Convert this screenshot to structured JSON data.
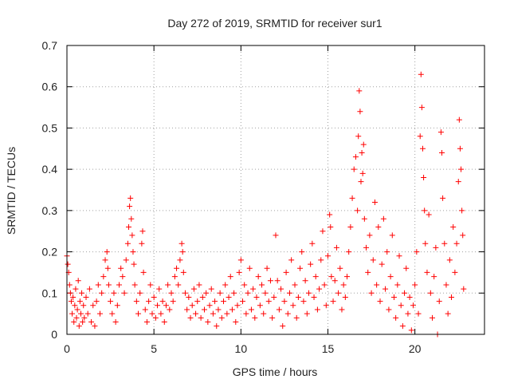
{
  "chart_data": {
    "type": "scatter",
    "title": "Day 272 of 2019, SRMTID for receiver sur1",
    "xlabel": "GPS time / hours",
    "ylabel": "SRMTID / TECUs",
    "xlim": [
      0,
      24
    ],
    "ylim": [
      0,
      0.7
    ],
    "xticks": [
      0,
      5,
      10,
      15,
      20
    ],
    "xtick_labels": [
      "0",
      "5",
      "10",
      "15",
      "20"
    ],
    "yticks": [
      0,
      0.1,
      0.2,
      0.3,
      0.4,
      0.5,
      0.6,
      0.7
    ],
    "ytick_labels": [
      "0",
      "0.1",
      "0.2",
      "0.3",
      "0.4",
      "0.5",
      "0.6",
      "0.7"
    ],
    "grid": true,
    "marker": "+",
    "series": [
      {
        "name": "sur1",
        "color": "#ff0000",
        "points": [
          [
            0.0,
            0.19
          ],
          [
            0.05,
            0.17
          ],
          [
            0.1,
            0.15
          ],
          [
            0.15,
            0.12
          ],
          [
            0.2,
            0.1
          ],
          [
            0.25,
            0.08
          ],
          [
            0.3,
            0.05
          ],
          [
            0.35,
            0.09
          ],
          [
            0.4,
            0.03
          ],
          [
            0.45,
            0.07
          ],
          [
            0.5,
            0.11
          ],
          [
            0.55,
            0.04
          ],
          [
            0.6,
            0.06
          ],
          [
            0.65,
            0.13
          ],
          [
            0.7,
            0.02
          ],
          [
            0.75,
            0.08
          ],
          [
            0.8,
            0.05
          ],
          [
            0.85,
            0.1
          ],
          [
            0.9,
            0.03
          ],
          [
            0.95,
            0.07
          ],
          [
            1.0,
            0.04
          ],
          [
            1.1,
            0.09
          ],
          [
            1.2,
            0.05
          ],
          [
            1.3,
            0.11
          ],
          [
            1.4,
            0.03
          ],
          [
            1.5,
            0.07
          ],
          [
            1.6,
            0.02
          ],
          [
            1.7,
            0.08
          ],
          [
            1.8,
            0.12
          ],
          [
            1.9,
            0.05
          ],
          [
            2.0,
            0.1
          ],
          [
            2.1,
            0.14
          ],
          [
            2.2,
            0.18
          ],
          [
            2.3,
            0.2
          ],
          [
            2.35,
            0.16
          ],
          [
            2.4,
            0.12
          ],
          [
            2.5,
            0.08
          ],
          [
            2.6,
            0.05
          ],
          [
            2.7,
            0.1
          ],
          [
            2.8,
            0.03
          ],
          [
            2.9,
            0.07
          ],
          [
            3.0,
            0.12
          ],
          [
            3.1,
            0.16
          ],
          [
            3.2,
            0.14
          ],
          [
            3.3,
            0.1
          ],
          [
            3.4,
            0.18
          ],
          [
            3.5,
            0.22
          ],
          [
            3.55,
            0.26
          ],
          [
            3.6,
            0.31
          ],
          [
            3.65,
            0.33
          ],
          [
            3.7,
            0.28
          ],
          [
            3.75,
            0.24
          ],
          [
            3.8,
            0.2
          ],
          [
            3.85,
            0.17
          ],
          [
            3.9,
            0.12
          ],
          [
            4.0,
            0.08
          ],
          [
            4.1,
            0.05
          ],
          [
            4.2,
            0.1
          ],
          [
            4.3,
            0.22
          ],
          [
            4.35,
            0.25
          ],
          [
            4.4,
            0.15
          ],
          [
            4.5,
            0.06
          ],
          [
            4.6,
            0.03
          ],
          [
            4.7,
            0.08
          ],
          [
            4.8,
            0.12
          ],
          [
            4.9,
            0.05
          ],
          [
            5.0,
            0.09
          ],
          [
            5.1,
            0.04
          ],
          [
            5.2,
            0.07
          ],
          [
            5.3,
            0.11
          ],
          [
            5.4,
            0.05
          ],
          [
            5.5,
            0.08
          ],
          [
            5.6,
            0.03
          ],
          [
            5.7,
            0.07
          ],
          [
            5.8,
            0.12
          ],
          [
            5.9,
            0.06
          ],
          [
            6.0,
            0.1
          ],
          [
            6.1,
            0.08
          ],
          [
            6.2,
            0.14
          ],
          [
            6.3,
            0.16
          ],
          [
            6.4,
            0.12
          ],
          [
            6.5,
            0.18
          ],
          [
            6.6,
            0.22
          ],
          [
            6.65,
            0.2
          ],
          [
            6.7,
            0.15
          ],
          [
            6.8,
            0.1
          ],
          [
            6.9,
            0.06
          ],
          [
            7.0,
            0.09
          ],
          [
            7.1,
            0.04
          ],
          [
            7.2,
            0.07
          ],
          [
            7.3,
            0.11
          ],
          [
            7.4,
            0.05
          ],
          [
            7.5,
            0.08
          ],
          [
            7.6,
            0.12
          ],
          [
            7.7,
            0.04
          ],
          [
            7.8,
            0.09
          ],
          [
            7.9,
            0.06
          ],
          [
            8.0,
            0.1
          ],
          [
            8.1,
            0.03
          ],
          [
            8.2,
            0.07
          ],
          [
            8.3,
            0.11
          ],
          [
            8.4,
            0.05
          ],
          [
            8.5,
            0.08
          ],
          [
            8.6,
            0.02
          ],
          [
            8.7,
            0.06
          ],
          [
            8.8,
            0.1
          ],
          [
            8.9,
            0.04
          ],
          [
            9.0,
            0.08
          ],
          [
            9.1,
            0.12
          ],
          [
            9.2,
            0.05
          ],
          [
            9.3,
            0.09
          ],
          [
            9.4,
            0.14
          ],
          [
            9.5,
            0.06
          ],
          [
            9.6,
            0.1
          ],
          [
            9.7,
            0.03
          ],
          [
            9.8,
            0.07
          ],
          [
            9.9,
            0.15
          ],
          [
            10.0,
            0.18
          ],
          [
            10.1,
            0.08
          ],
          [
            10.2,
            0.12
          ],
          [
            10.3,
            0.05
          ],
          [
            10.4,
            0.1
          ],
          [
            10.5,
            0.16
          ],
          [
            10.6,
            0.06
          ],
          [
            10.7,
            0.11
          ],
          [
            10.8,
            0.04
          ],
          [
            10.9,
            0.09
          ],
          [
            11.0,
            0.14
          ],
          [
            11.1,
            0.07
          ],
          [
            11.2,
            0.12
          ],
          [
            11.3,
            0.05
          ],
          [
            11.4,
            0.1
          ],
          [
            11.5,
            0.16
          ],
          [
            11.6,
            0.08
          ],
          [
            11.7,
            0.13
          ],
          [
            11.8,
            0.04
          ],
          [
            11.9,
            0.09
          ],
          [
            12.0,
            0.24
          ],
          [
            12.1,
            0.13
          ],
          [
            12.2,
            0.06
          ],
          [
            12.3,
            0.11
          ],
          [
            12.4,
            0.02
          ],
          [
            12.5,
            0.08
          ],
          [
            12.6,
            0.15
          ],
          [
            12.7,
            0.05
          ],
          [
            12.8,
            0.1
          ],
          [
            12.9,
            0.18
          ],
          [
            13.0,
            0.07
          ],
          [
            13.1,
            0.12
          ],
          [
            13.2,
            0.04
          ],
          [
            13.3,
            0.09
          ],
          [
            13.4,
            0.16
          ],
          [
            13.5,
            0.2
          ],
          [
            13.6,
            0.08
          ],
          [
            13.7,
            0.13
          ],
          [
            13.8,
            0.05
          ],
          [
            13.9,
            0.1
          ],
          [
            14.0,
            0.17
          ],
          [
            14.1,
            0.22
          ],
          [
            14.2,
            0.09
          ],
          [
            14.3,
            0.14
          ],
          [
            14.4,
            0.06
          ],
          [
            14.5,
            0.11
          ],
          [
            14.6,
            0.18
          ],
          [
            14.7,
            0.25
          ],
          [
            14.8,
            0.12
          ],
          [
            14.9,
            0.07
          ],
          [
            15.0,
            0.19
          ],
          [
            15.1,
            0.29
          ],
          [
            15.15,
            0.26
          ],
          [
            15.2,
            0.14
          ],
          [
            15.3,
            0.08
          ],
          [
            15.4,
            0.13
          ],
          [
            15.5,
            0.21
          ],
          [
            15.6,
            0.1
          ],
          [
            15.7,
            0.16
          ],
          [
            15.8,
            0.06
          ],
          [
            15.9,
            0.12
          ],
          [
            16.0,
            0.09
          ],
          [
            16.1,
            0.14
          ],
          [
            16.2,
            0.2
          ],
          [
            16.3,
            0.26
          ],
          [
            16.4,
            0.33
          ],
          [
            16.5,
            0.4
          ],
          [
            16.6,
            0.43
          ],
          [
            16.7,
            0.3
          ],
          [
            16.75,
            0.48
          ],
          [
            16.8,
            0.59
          ],
          [
            16.85,
            0.54
          ],
          [
            16.9,
            0.37
          ],
          [
            16.95,
            0.44
          ],
          [
            17.0,
            0.39
          ],
          [
            17.05,
            0.46
          ],
          [
            17.1,
            0.28
          ],
          [
            17.2,
            0.21
          ],
          [
            17.3,
            0.15
          ],
          [
            17.4,
            0.24
          ],
          [
            17.5,
            0.1
          ],
          [
            17.6,
            0.18
          ],
          [
            17.7,
            0.32
          ],
          [
            17.8,
            0.12
          ],
          [
            17.9,
            0.26
          ],
          [
            18.0,
            0.08
          ],
          [
            18.1,
            0.17
          ],
          [
            18.2,
            0.28
          ],
          [
            18.3,
            0.11
          ],
          [
            18.4,
            0.2
          ],
          [
            18.5,
            0.06
          ],
          [
            18.6,
            0.14
          ],
          [
            18.7,
            0.24
          ],
          [
            18.8,
            0.09
          ],
          [
            18.9,
            0.04
          ],
          [
            19.0,
            0.12
          ],
          [
            19.1,
            0.19
          ],
          [
            19.2,
            0.07
          ],
          [
            19.3,
            0.02
          ],
          [
            19.4,
            0.1
          ],
          [
            19.5,
            0.16
          ],
          [
            19.6,
            0.05
          ],
          [
            19.7,
            0.09
          ],
          [
            19.8,
            0.01
          ],
          [
            19.9,
            0.07
          ],
          [
            20.0,
            0.12
          ],
          [
            20.1,
            0.2
          ],
          [
            20.2,
            0.05
          ],
          [
            20.3,
            0.48
          ],
          [
            20.35,
            0.63
          ],
          [
            20.4,
            0.55
          ],
          [
            20.45,
            0.45
          ],
          [
            20.5,
            0.38
          ],
          [
            20.55,
            0.3
          ],
          [
            20.6,
            0.22
          ],
          [
            20.7,
            0.15
          ],
          [
            20.8,
            0.29
          ],
          [
            20.9,
            0.1
          ],
          [
            21.0,
            0.04
          ],
          [
            21.1,
            0.14
          ],
          [
            21.2,
            0.21
          ],
          [
            21.3,
            0.0
          ],
          [
            21.4,
            0.08
          ],
          [
            21.5,
            0.49
          ],
          [
            21.55,
            0.44
          ],
          [
            21.6,
            0.33
          ],
          [
            21.7,
            0.22
          ],
          [
            21.8,
            0.12
          ],
          [
            21.9,
            0.05
          ],
          [
            22.0,
            0.18
          ],
          [
            22.1,
            0.09
          ],
          [
            22.2,
            0.26
          ],
          [
            22.3,
            0.15
          ],
          [
            22.4,
            0.22
          ],
          [
            22.5,
            0.37
          ],
          [
            22.55,
            0.52
          ],
          [
            22.6,
            0.45
          ],
          [
            22.65,
            0.4
          ],
          [
            22.7,
            0.3
          ],
          [
            22.75,
            0.24
          ],
          [
            22.8,
            0.11
          ]
        ]
      }
    ]
  }
}
